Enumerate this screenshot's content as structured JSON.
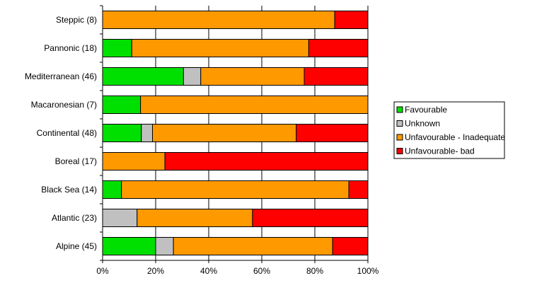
{
  "chart_data": {
    "type": "bar",
    "orientation": "horizontal",
    "stacked": "percent",
    "categories": [
      "Steppic (8)",
      "Pannonic (18)",
      "Mediterranean (46)",
      "Macaronesian (7)",
      "Continental (48)",
      "Boreal (17)",
      "Black Sea (14)",
      "Atlantic (23)",
      "Alpine (45)"
    ],
    "series": [
      {
        "name": "Favourable",
        "color": "#00e000",
        "values": [
          0,
          11,
          30.5,
          14.3,
          14.6,
          0,
          7.1,
          0,
          20
        ]
      },
      {
        "name": "Unknown",
        "color": "#c0c0c0",
        "values": [
          0,
          0,
          6.5,
          0,
          4.2,
          0,
          0,
          13,
          6.7
        ]
      },
      {
        "name": "Unfavourable - Inadequate",
        "color": "#ff9900",
        "values": [
          87.5,
          66.7,
          39,
          85.7,
          54.2,
          23.5,
          85.7,
          43.5,
          60
        ]
      },
      {
        "name": "Unfavourable- bad",
        "color": "#ff0000",
        "values": [
          12.5,
          22.3,
          24,
          0,
          27,
          76.5,
          7.2,
          43.5,
          13.3
        ]
      }
    ],
    "xticks": [
      "0%",
      "20%",
      "40%",
      "60%",
      "80%",
      "100%"
    ],
    "xlim": [
      0,
      100
    ],
    "grid": "vertical major",
    "legend_position": "right"
  }
}
